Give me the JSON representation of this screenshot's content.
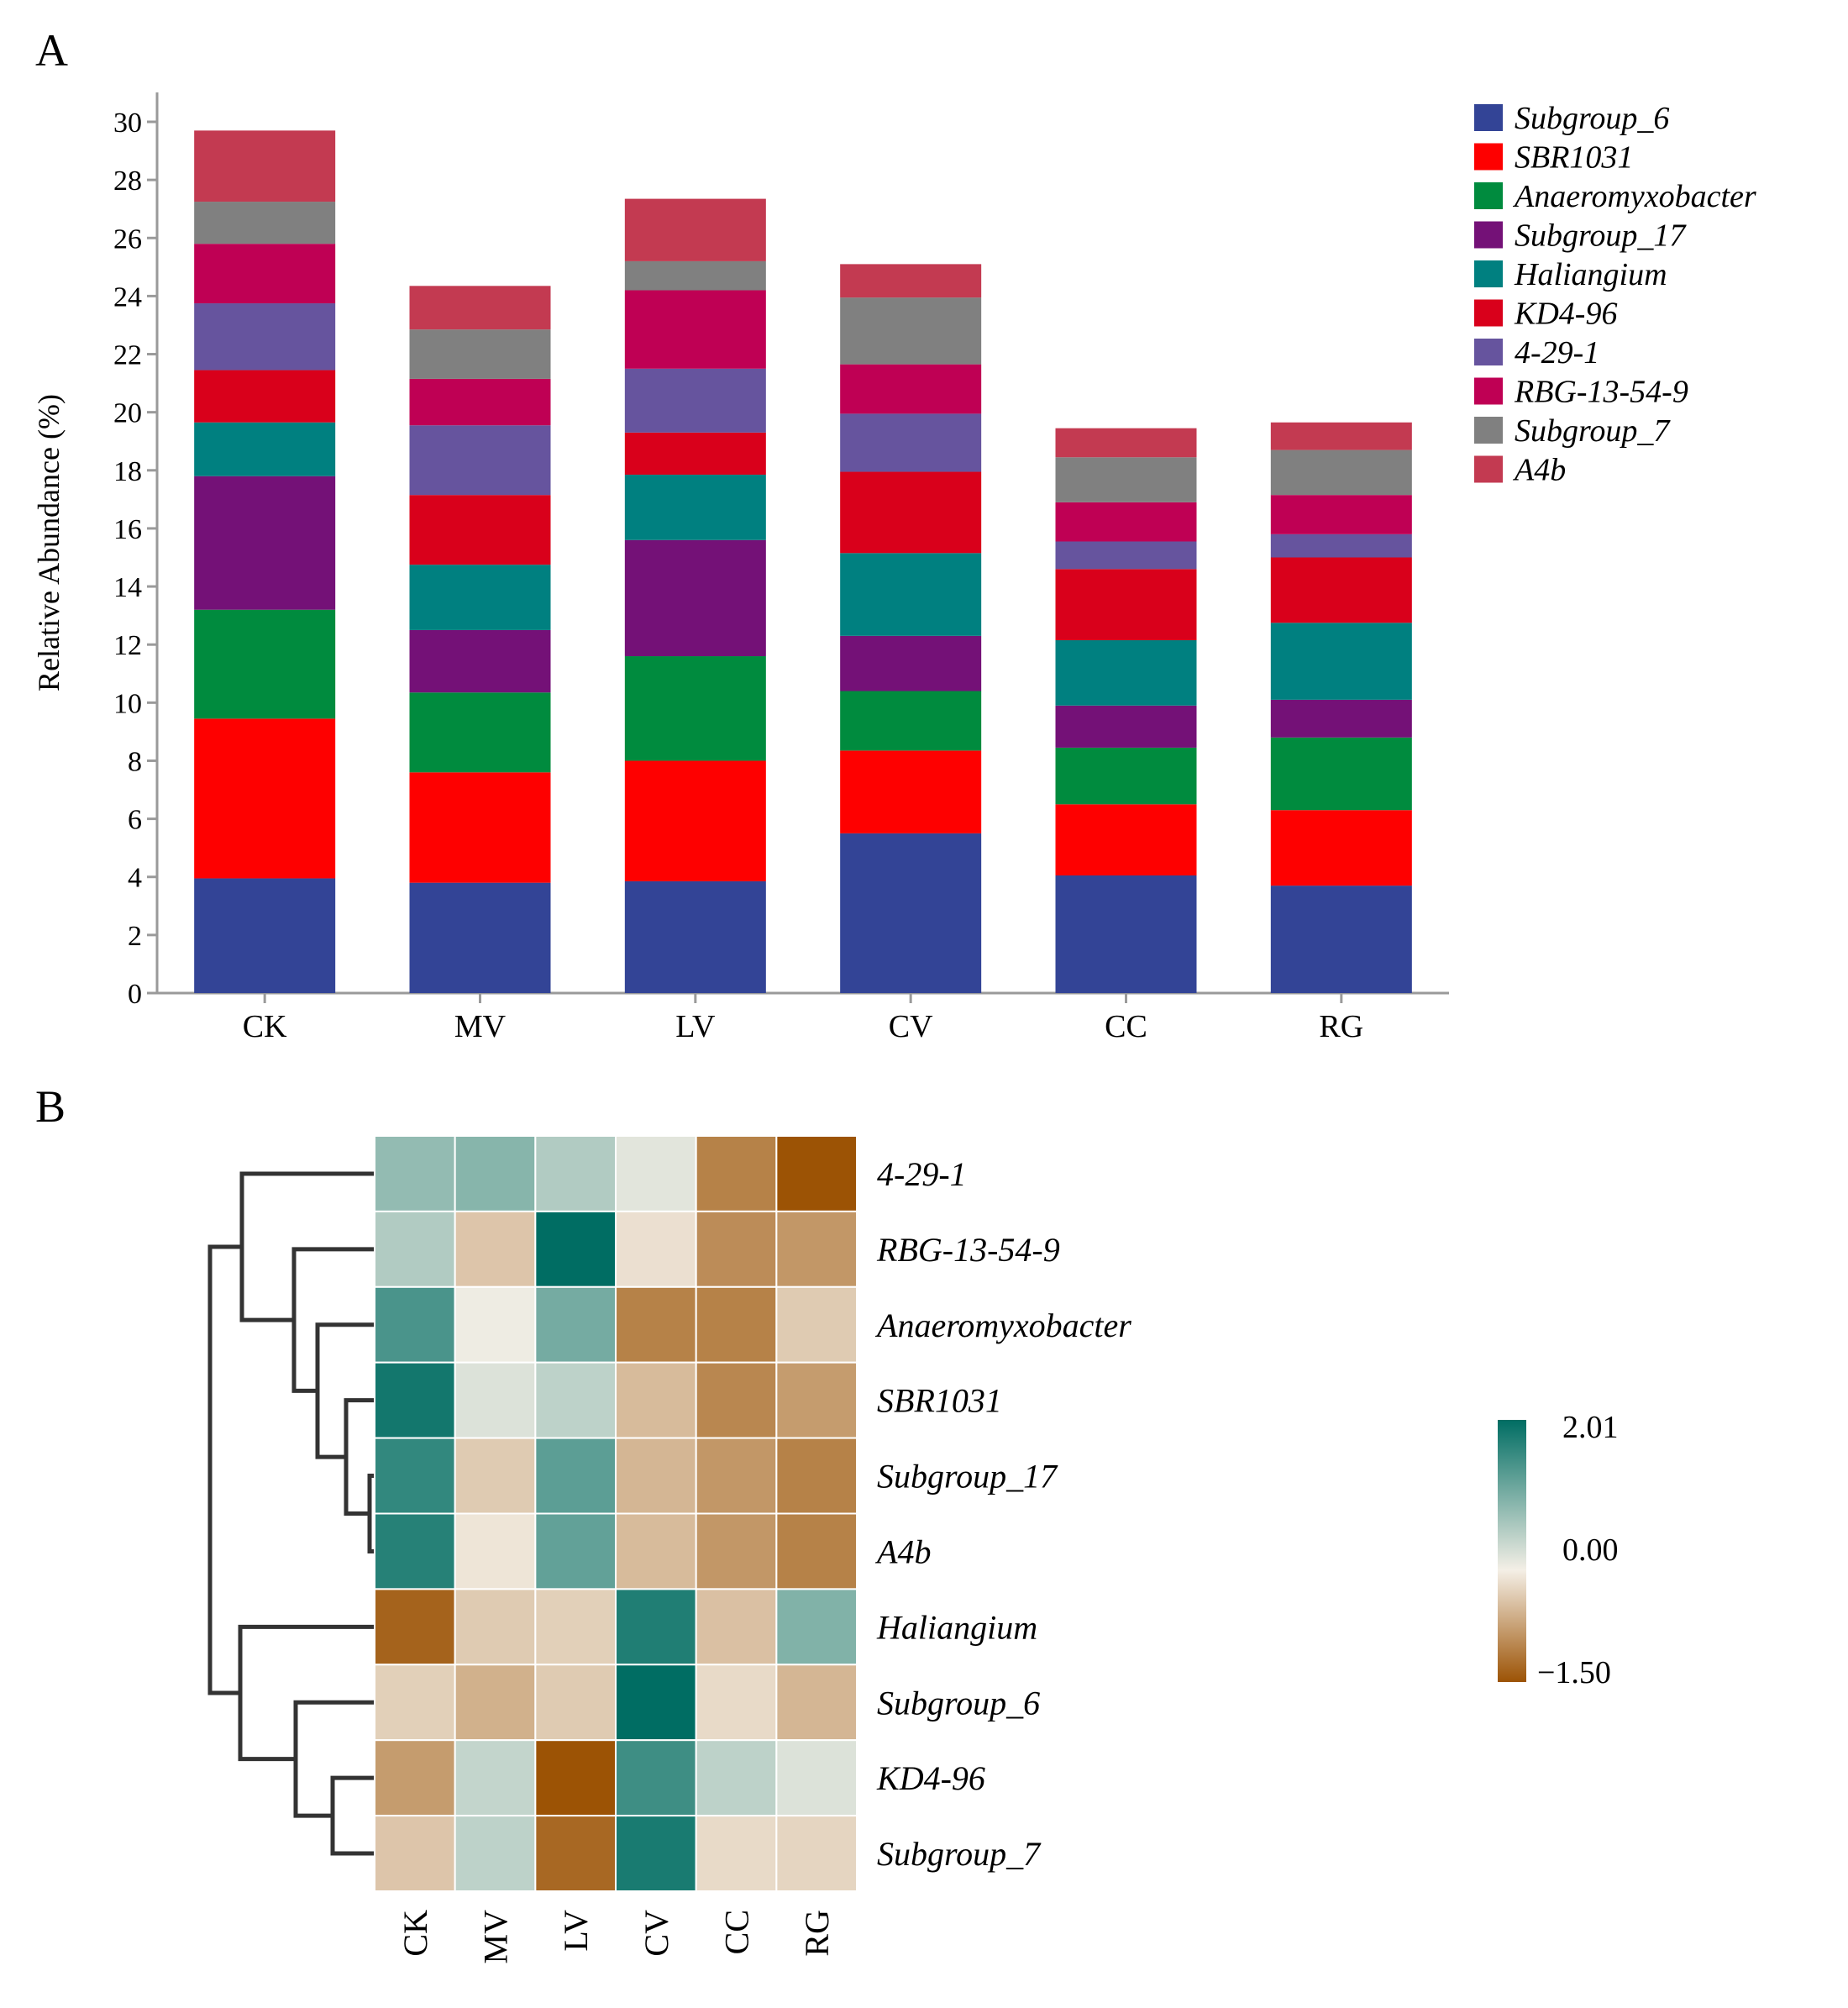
{
  "panels": {
    "a": "A",
    "b": "B"
  },
  "chart_data": [
    {
      "type": "bar",
      "stacked": true,
      "title": "",
      "xlabel": "",
      "ylabel": "Relative Abundance (%)",
      "ylim": [
        0,
        30
      ],
      "yticks": [
        0,
        2,
        4,
        6,
        8,
        10,
        12,
        14,
        16,
        18,
        20,
        22,
        24,
        26,
        28,
        30
      ],
      "categories": [
        "CK",
        "MV",
        "LV",
        "CV",
        "CC",
        "RG"
      ],
      "legend_position": "top-right",
      "series": [
        {
          "name": "Subgroup_6",
          "color": "#334496",
          "values": [
            3.95,
            3.8,
            3.85,
            5.5,
            4.05,
            3.7
          ]
        },
        {
          "name": "SBR1031",
          "color": "#fe0000",
          "values": [
            5.5,
            3.8,
            4.15,
            2.85,
            2.45,
            2.6
          ]
        },
        {
          "name": "Anaeromyxobacter",
          "color": "#008b3e",
          "values": [
            3.75,
            2.75,
            3.6,
            2.05,
            1.95,
            2.5
          ]
        },
        {
          "name": "Subgroup_17",
          "color": "#741177",
          "values": [
            4.6,
            2.15,
            4.0,
            1.9,
            1.45,
            1.3
          ]
        },
        {
          "name": "Haliangium",
          "color": "#008080",
          "values": [
            1.85,
            2.25,
            2.25,
            2.85,
            2.25,
            2.65
          ]
        },
        {
          "name": "KD4-96",
          "color": "#d9001b",
          "values": [
            1.8,
            2.4,
            1.45,
            2.8,
            2.45,
            2.25
          ]
        },
        {
          "name": "4-29-1",
          "color": "#66549e",
          "values": [
            2.3,
            2.4,
            2.2,
            2.0,
            0.95,
            0.8
          ]
        },
        {
          "name": "RBG-13-54-9",
          "color": "#bf0054",
          "values": [
            2.05,
            1.6,
            2.7,
            1.7,
            1.35,
            1.35
          ]
        },
        {
          "name": "Subgroup_7",
          "color": "#808080",
          "values": [
            1.45,
            1.7,
            1.0,
            2.3,
            1.55,
            1.55
          ]
        },
        {
          "name": "A4b",
          "color": "#c33a51",
          "values": [
            2.45,
            1.5,
            2.15,
            1.15,
            1.0,
            0.95
          ]
        }
      ]
    },
    {
      "type": "heatmap",
      "title": "",
      "columns": [
        "CK",
        "MV",
        "LV",
        "CV",
        "CC",
        "RG"
      ],
      "rows": [
        "4-29-1",
        "RBG-13-54-9",
        "Anaeromyxobacter",
        "SBR1031",
        "Subgroup_17",
        "A4b",
        "Haliangium",
        "Subgroup_6",
        "KD4-96",
        "Subgroup_7"
      ],
      "values": [
        [
          0.8,
          0.9,
          0.55,
          0.15,
          -1.05,
          -1.5
        ],
        [
          0.55,
          -0.4,
          2.01,
          -0.15,
          -0.95,
          -0.85
        ],
        [
          1.4,
          0.05,
          1.05,
          -1.05,
          -1.05,
          -0.35
        ],
        [
          1.85,
          0.2,
          0.45,
          -0.5,
          -1.0,
          -0.8
        ],
        [
          1.6,
          -0.35,
          1.25,
          -0.55,
          -0.85,
          -1.05
        ],
        [
          1.7,
          -0.1,
          1.2,
          -0.5,
          -0.85,
          -1.05
        ],
        [
          -1.35,
          -0.35,
          -0.3,
          1.75,
          -0.45,
          0.95
        ],
        [
          -0.3,
          -0.6,
          -0.35,
          2.01,
          -0.2,
          -0.55
        ],
        [
          -0.8,
          0.4,
          -1.5,
          1.5,
          0.45,
          0.2
        ],
        [
          -0.4,
          0.45,
          -1.3,
          1.8,
          -0.2,
          -0.25
        ]
      ],
      "colorbar": {
        "max": 2.01,
        "mid": 0.0,
        "min": -1.5,
        "max_label": "2.01",
        "mid_label": "0.00",
        "min_label": "−1.50",
        "colors": [
          "#9c5305",
          "#f4efe6",
          "#006d63"
        ]
      },
      "dendrogram": "rows"
    }
  ]
}
